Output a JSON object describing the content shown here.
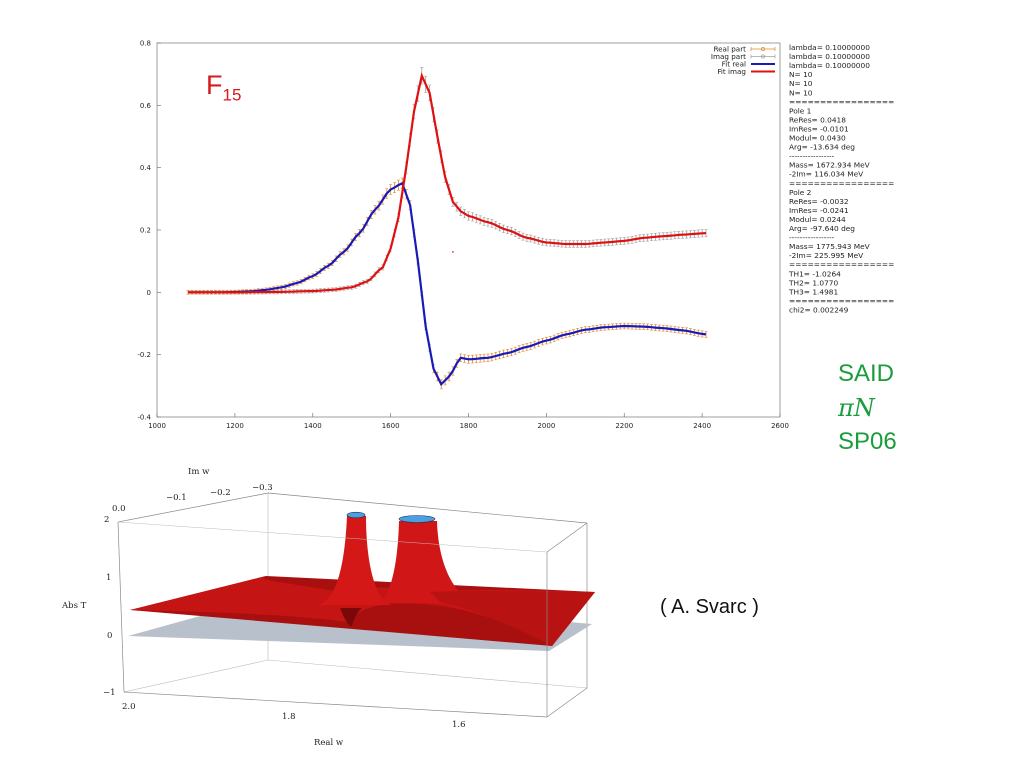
{
  "chart_data": [
    {
      "type": "line",
      "annotation": "15",
      "annotation_prefix": "F",
      "xlim": [
        1000,
        2600
      ],
      "ylim": [
        -0.4,
        0.8
      ],
      "x_ticks": [
        "1000",
        "1200",
        "1400",
        "1600",
        "1800",
        "2000",
        "2200",
        "2400",
        "2600"
      ],
      "y_ticks": [
        "0.8",
        "0.6",
        "0.4",
        "0.2",
        "0",
        "-0.2",
        "-0.4"
      ],
      "legend": [
        "Real part",
        "Imag part",
        "Fit real",
        "Fit imag"
      ],
      "legend_position": "top-right",
      "series": [
        {
          "name": "Real part",
          "x": [
            1080,
            1120,
            1160,
            1200,
            1240,
            1280,
            1320,
            1360,
            1400,
            1440,
            1480,
            1520,
            1560,
            1600,
            1630,
            1650,
            1670,
            1690,
            1710,
            1730,
            1750,
            1780,
            1800,
            1850,
            1900,
            1950,
            2000,
            2050,
            2100,
            2150,
            2200,
            2250,
            2300,
            2350,
            2410
          ],
          "y": [
            0.0,
            0.0,
            0.0,
            0.001,
            0.003,
            0.008,
            0.016,
            0.03,
            0.052,
            0.085,
            0.13,
            0.19,
            0.265,
            0.33,
            0.35,
            0.28,
            0.1,
            -0.11,
            -0.245,
            -0.295,
            -0.27,
            -0.21,
            -0.215,
            -0.21,
            -0.195,
            -0.175,
            -0.155,
            -0.135,
            -0.12,
            -0.112,
            -0.108,
            -0.11,
            -0.115,
            -0.122,
            -0.135
          ]
        },
        {
          "name": "Imag part",
          "x": [
            1080,
            1200,
            1300,
            1400,
            1450,
            1500,
            1540,
            1580,
            1600,
            1620,
            1640,
            1660,
            1680,
            1700,
            1720,
            1740,
            1760,
            1780,
            1800,
            1850,
            1900,
            1950,
            2000,
            2050,
            2100,
            2150,
            2200,
            2250,
            2300,
            2350,
            2410
          ],
          "y": [
            0.0,
            0.0,
            0.001,
            0.004,
            0.008,
            0.016,
            0.035,
            0.08,
            0.14,
            0.24,
            0.4,
            0.58,
            0.695,
            0.64,
            0.5,
            0.37,
            0.29,
            0.26,
            0.245,
            0.225,
            0.2,
            0.175,
            0.16,
            0.155,
            0.155,
            0.16,
            0.165,
            0.175,
            0.18,
            0.185,
            0.19
          ]
        }
      ],
      "stray_point": {
        "x": 1760,
        "y": 0.13
      },
      "fit_info": [
        "lambda=    0.10000000",
        "lambda=    0.10000000",
        "lambda=    0.10000000",
        "N= 10",
        "N= 10",
        "N= 10",
        "=================",
        "Pole 1",
        "ReRes=    0.0418",
        "ImRes=   -0.0101",
        "Modul=    0.0430",
        "Arg=   -13.634 deg",
        "-----------------",
        "Mass=  1672.934 MeV",
        "-2Im=    116.034 MeV",
        "=================",
        "Pole 2",
        "ReRes=   -0.0032",
        "ImRes=   -0.0241",
        "Modul=    0.0244",
        "Arg=   -97.640 deg",
        "-----------------",
        "Mass=  1775.943 MeV",
        "-2Im=    225.995 MeV",
        "=================",
        "TH1= -1.0264",
        "TH2=  1.0770",
        "TH3=  1.4981",
        "=================",
        "chi2= 0.002249"
      ],
      "colors": {
        "real": "#1a1ab8",
        "imag": "#e01010",
        "real_err": "#e08a2a",
        "imag_err": "#a0a0a0"
      }
    },
    {
      "type": "surface",
      "xlabel": "Real w",
      "ylabel": "Im w",
      "zlabel": "Abs T",
      "x_ticks": [
        "2.0",
        "1.8",
        "1.6"
      ],
      "y_ticks": [
        "0.0",
        "−0.1",
        "−0.2",
        "−0.3"
      ],
      "z_ticks": [
        "2",
        "1",
        "0",
        "−1"
      ],
      "colors": {
        "surface": "#cc1010",
        "plane": "#b8c0cc"
      }
    }
  ],
  "labels": {
    "said": [
      "SAID",
      "πN",
      "SP06"
    ],
    "credit": "( A. Svarc )"
  }
}
